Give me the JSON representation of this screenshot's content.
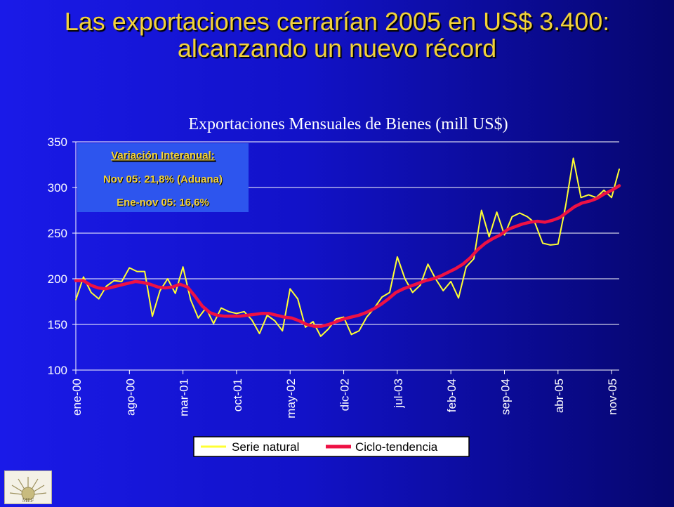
{
  "headline": {
    "line1": "Las exportaciones cerrarían 2005 en US$ 3.400:",
    "line2": "alcanzando un nuevo récord"
  },
  "logo": {
    "label": "MEF",
    "icon": "sun-emblem-icon"
  },
  "colors": {
    "title": "#f2d23a",
    "serie": "#ffff33",
    "tendencia": "#ee1144",
    "box_text": "#f2d23a",
    "axis_text": "#ffffff"
  },
  "chart_data": {
    "type": "line",
    "title": "Exportaciones Mensuales de Bienes (mill US$)",
    "ylim": [
      100,
      350
    ],
    "yticks": [
      100,
      150,
      200,
      250,
      300,
      350
    ],
    "grid": "horizontal",
    "x_tick_labels": [
      "ene-00",
      "ago-00",
      "mar-01",
      "oct-01",
      "may-02",
      "dic-02",
      "jul-03",
      "feb-04",
      "sep-04",
      "abr-05",
      "nov-05"
    ],
    "x_tick_step_months": 7,
    "annotation": {
      "heading": "Variación Interanual:",
      "line1": "Nov 05: 21,8% (Aduana)",
      "line2": "Ene-nov 05: 16,6%"
    },
    "legend_position": "bottom",
    "series": [
      {
        "name": "Serie natural",
        "values": [
          177,
          202,
          185,
          178,
          192,
          198,
          197,
          212,
          208,
          208,
          159,
          187,
          200,
          184,
          213,
          177,
          157,
          168,
          151,
          168,
          164,
          162,
          164,
          155,
          140,
          160,
          154,
          143,
          189,
          178,
          147,
          153,
          137,
          145,
          156,
          158,
          139,
          143,
          158,
          168,
          180,
          185,
          224,
          200,
          185,
          193,
          216,
          200,
          187,
          197,
          179,
          213,
          222,
          275,
          246,
          273,
          248,
          268,
          272,
          268,
          261,
          239,
          237,
          238,
          280,
          332,
          289,
          292,
          289,
          297,
          289,
          320
        ]
      },
      {
        "name": "Ciclo-tendencia",
        "values": [
          198,
          198,
          193,
          190,
          189,
          191,
          193,
          195,
          197,
          196,
          194,
          191,
          190,
          191,
          194,
          191,
          181,
          170,
          163,
          160,
          159,
          159,
          159,
          160,
          161,
          162,
          162,
          160,
          158,
          157,
          154,
          150,
          148,
          148,
          150,
          153,
          156,
          158,
          160,
          163,
          167,
          172,
          178,
          185,
          189,
          192,
          195,
          198,
          200,
          203,
          207,
          211,
          216,
          223,
          232,
          239,
          244,
          248,
          254,
          257,
          260,
          262,
          263,
          262,
          264,
          267,
          273,
          279,
          283,
          285,
          288,
          293,
          297,
          302
        ]
      }
    ]
  }
}
